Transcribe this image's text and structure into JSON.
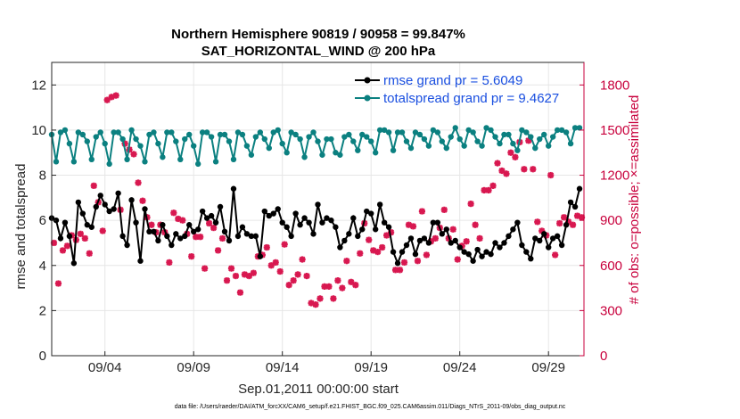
{
  "chart_data": {
    "type": "line",
    "title": "Northern Hemisphere 90819 / 90958 = 99.847%",
    "subtitle": "SAT_HORIZONTAL_WIND @ 200 hPa",
    "xlabel": "Sep.01,2011 00:00:00 start",
    "ylabel_left": "rmse and totalspread",
    "ylabel_right": "# of obs: o=possible; ×=assimilated",
    "footnote": "data file: /Users/raeder/DAI/ATM_forcXX/CAM6_setup/f.e21.FHIST_BGC.f09_025.CAM6assim.011/Diags_NTrS_2011-09/obs_diag_output.nc",
    "x_ticks": [
      "09/04",
      "09/09",
      "09/14",
      "09/19",
      "09/24",
      "09/29"
    ],
    "x_tick_days": [
      3,
      8,
      13,
      18,
      23,
      28
    ],
    "xlim_days": [
      0,
      30
    ],
    "ylim_left": [
      0,
      13
    ],
    "yticks_left": [
      "0",
      "2",
      "4",
      "6",
      "8",
      "10",
      "12"
    ],
    "ylim_right": [
      0,
      1950
    ],
    "yticks_right": [
      "0",
      "300",
      "600",
      "900",
      "1200",
      "1500",
      "1800"
    ],
    "legend_position": "top-right",
    "colors": {
      "rmse": "#000000",
      "totalspread": "#0b8080",
      "obs": "#d81850",
      "legend_text": "#1a4fe0",
      "right_axis": "#c8003c"
    },
    "x_days": [
      0.0,
      0.25,
      0.5,
      0.75,
      1.0,
      1.25,
      1.5,
      1.75,
      2.0,
      2.25,
      2.5,
      2.75,
      3.0,
      3.25,
      3.5,
      3.75,
      4.0,
      4.25,
      4.5,
      4.75,
      5.0,
      5.25,
      5.5,
      5.75,
      6.0,
      6.25,
      6.5,
      6.75,
      7.0,
      7.25,
      7.5,
      7.75,
      8.0,
      8.25,
      8.5,
      8.75,
      9.0,
      9.25,
      9.5,
      9.75,
      10.0,
      10.25,
      10.5,
      10.75,
      11.0,
      11.25,
      11.5,
      11.75,
      12.0,
      12.25,
      12.5,
      12.75,
      13.0,
      13.25,
      13.5,
      13.75,
      14.0,
      14.25,
      14.5,
      14.75,
      15.0,
      15.25,
      15.5,
      15.75,
      16.0,
      16.25,
      16.5,
      16.75,
      17.0,
      17.25,
      17.5,
      17.75,
      18.0,
      18.25,
      18.5,
      18.75,
      19.0,
      19.25,
      19.5,
      19.75,
      20.0,
      20.25,
      20.5,
      20.75,
      21.0,
      21.25,
      21.5,
      21.75,
      22.0,
      22.25,
      22.5,
      22.75,
      23.0,
      23.25,
      23.5,
      23.75,
      24.0,
      24.25,
      24.5,
      24.75,
      25.0,
      25.25,
      25.5,
      25.75,
      26.0,
      26.25,
      26.5,
      26.75,
      27.0,
      27.25,
      27.5,
      27.75,
      28.0,
      28.25,
      28.5,
      28.75,
      29.0,
      29.25,
      29.5,
      29.75
    ],
    "series": [
      {
        "name": "rmse grand pr = 5.6049",
        "marker": "circle",
        "values": [
          6.1,
          6.0,
          5.2,
          5.9,
          5.3,
          4.1,
          6.8,
          6.3,
          5.8,
          5.7,
          6.6,
          7.1,
          6.7,
          6.4,
          6.5,
          7.2,
          5.3,
          4.9,
          6.9,
          5.9,
          4.2,
          6.5,
          5.5,
          5.5,
          5.1,
          5.8,
          5.3,
          4.9,
          5.4,
          5.2,
          5.3,
          5.8,
          5.5,
          5.6,
          6.4,
          6.1,
          6.2,
          5.9,
          6.6,
          5.5,
          5.1,
          7.4,
          5.3,
          5.7,
          5.4,
          5.3,
          5.3,
          4.4,
          6.4,
          6.2,
          6.3,
          6.5,
          5.9,
          5.7,
          5.3,
          6.3,
          5.8,
          6.1,
          5.9,
          5.4,
          6.7,
          5.9,
          6.1,
          6.0,
          5.7,
          4.8,
          5.1,
          5.4,
          6.1,
          5.3,
          5.6,
          6.4,
          6.3,
          5.6,
          6.7,
          5.9,
          5.7,
          4.6,
          4.1,
          4.6,
          4.9,
          5.2,
          4.5,
          5.1,
          5.2,
          5.0,
          5.9,
          5.9,
          5.4,
          5.6,
          5.0,
          5.1,
          4.8,
          4.6,
          4.5,
          4.2,
          4.7,
          4.4,
          4.6,
          4.5,
          5.0,
          4.8,
          5.0,
          5.3,
          5.6,
          5.9,
          4.9,
          4.6,
          4.3,
          5.2,
          5.1,
          5.4,
          4.8,
          5.2,
          5.3,
          4.9,
          5.8,
          6.8,
          6.6,
          7.4
        ]
      },
      {
        "name": "totalspread grand pr = 9.4627",
        "marker": "circle",
        "values": [
          9.8,
          8.6,
          9.9,
          10.0,
          9.4,
          8.6,
          9.9,
          9.8,
          9.5,
          8.7,
          9.7,
          9.9,
          9.4,
          8.5,
          9.9,
          9.9,
          9.6,
          8.7,
          10.0,
          9.6,
          9.3,
          8.6,
          9.8,
          9.9,
          9.4,
          8.8,
          9.9,
          9.9,
          9.5,
          8.7,
          9.6,
          9.8,
          9.3,
          8.5,
          9.9,
          9.9,
          9.7,
          8.6,
          9.8,
          9.8,
          9.5,
          8.7,
          9.9,
          9.8,
          9.3,
          8.9,
          9.7,
          9.9,
          9.6,
          9.2,
          9.9,
          10.0,
          9.4,
          9.0,
          9.9,
          9.8,
          9.6,
          8.8,
          9.7,
          9.9,
          9.5,
          8.9,
          9.6,
          9.6,
          9.0,
          8.9,
          9.7,
          9.8,
          9.5,
          9.1,
          9.8,
          9.7,
          9.5,
          9.0,
          10.0,
          10.0,
          9.9,
          9.1,
          9.9,
          9.9,
          9.5,
          9.2,
          9.9,
          9.8,
          9.6,
          9.3,
          10.0,
          9.9,
          9.5,
          9.2,
          9.7,
          10.1,
          9.6,
          9.3,
          10.0,
          9.9,
          9.5,
          9.3,
          10.1,
          10.0,
          9.7,
          9.4,
          9.8,
          9.8,
          9.4,
          9.1,
          10.0,
          9.9,
          9.7,
          9.2,
          9.6,
          9.8,
          9.3,
          9.7,
          10.0,
          10.0,
          9.9,
          9.4,
          10.1,
          10.1
        ]
      },
      {
        "name": "obs_possible",
        "marker": "circle-open",
        "values": []
      },
      {
        "name": "obs_assimilated",
        "marker": "asterisk",
        "values": [
          750,
          480,
          700,
          730,
          800,
          770,
          810,
          780,
          680,
          1130,
          1020,
          830,
          1700,
          1720,
          1730,
          970,
          1410,
          1370,
          1340,
          1150,
          1030,
          920,
          870,
          820,
          870,
          820,
          620,
          950,
          910,
          900,
          810,
          660,
          790,
          790,
          580,
          880,
          850,
          700,
          780,
          500,
          580,
          530,
          420,
          540,
          530,
          550,
          660,
          670,
          720,
          600,
          620,
          560,
          740,
          470,
          500,
          540,
          640,
          530,
          350,
          340,
          380,
          460,
          460,
          380,
          500,
          450,
          630,
          490,
          470,
          680,
          880,
          770,
          700,
          690,
          720,
          800,
          820,
          570,
          570,
          620,
          870,
          860,
          630,
          960,
          670,
          760,
          780,
          850,
          970,
          780,
          840,
          640,
          730,
          760,
          1010,
          870,
          780,
          1100,
          1100,
          1130,
          1280,
          1230,
          1210,
          1350,
          1320,
          1420,
          1240,
          1430,
          1240,
          890,
          830,
          800,
          1200,
          670,
          880,
          920,
          890,
          870,
          930,
          920
        ]
      }
    ]
  }
}
